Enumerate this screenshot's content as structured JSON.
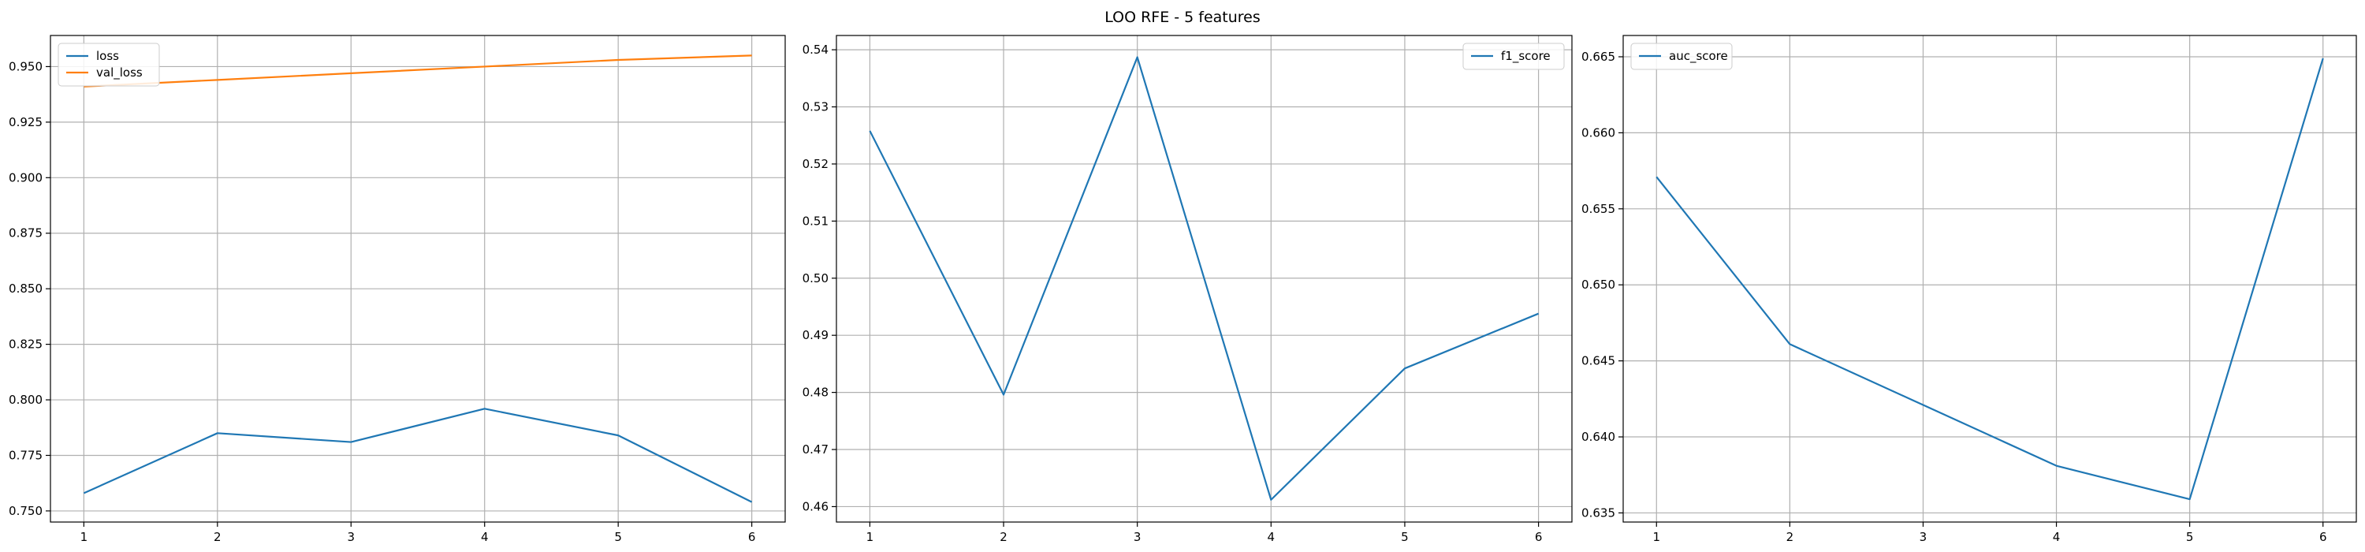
{
  "figure": {
    "title": "LOO RFE - 5 features"
  },
  "chart_data": [
    {
      "type": "line",
      "x": [
        1,
        2,
        3,
        4,
        5,
        6
      ],
      "series": [
        {
          "name": "loss",
          "color": "#1f77b4",
          "values": [
            0.758,
            0.785,
            0.781,
            0.796,
            0.784,
            0.754
          ]
        },
        {
          "name": "val_loss",
          "color": "#ff7f0e",
          "values": [
            0.941,
            0.944,
            0.947,
            0.95,
            0.953,
            0.955
          ]
        }
      ],
      "xticks": [
        1,
        2,
        3,
        4,
        5,
        6
      ],
      "yticks": [
        0.75,
        0.775,
        0.8,
        0.825,
        0.85,
        0.875,
        0.9,
        0.925,
        0.95
      ],
      "ytick_labels": [
        "0.750",
        "0.775",
        "0.800",
        "0.825",
        "0.850",
        "0.875",
        "0.900",
        "0.925",
        "0.950"
      ],
      "xlim": [
        0.75,
        6.25
      ],
      "ylim": [
        0.745,
        0.964
      ],
      "grid": true,
      "legend_position": "upper left"
    },
    {
      "type": "line",
      "x": [
        1,
        2,
        3,
        4,
        5,
        6
      ],
      "series": [
        {
          "name": "f1_score",
          "color": "#1f77b4",
          "values": [
            0.5258,
            0.4796,
            0.5387,
            0.4612,
            0.4842,
            0.4938
          ]
        }
      ],
      "xticks": [
        1,
        2,
        3,
        4,
        5,
        6
      ],
      "yticks": [
        0.46,
        0.47,
        0.48,
        0.49,
        0.5,
        0.51,
        0.52,
        0.53,
        0.54
      ],
      "ytick_labels": [
        "0.46",
        "0.47",
        "0.48",
        "0.49",
        "0.50",
        "0.51",
        "0.52",
        "0.53",
        "0.54"
      ],
      "xlim": [
        0.75,
        6.25
      ],
      "ylim": [
        0.4573,
        0.5425
      ],
      "grid": true,
      "legend_position": "upper right"
    },
    {
      "type": "line",
      "x": [
        1,
        2,
        3,
        4,
        5,
        6
      ],
      "series": [
        {
          "name": "auc_score",
          "color": "#1f77b4",
          "values": [
            0.6571,
            0.6461,
            0.6421,
            0.6381,
            0.6359,
            0.6649
          ]
        }
      ],
      "xticks": [
        1,
        2,
        3,
        4,
        5,
        6
      ],
      "yticks": [
        0.635,
        0.64,
        0.645,
        0.65,
        0.655,
        0.66,
        0.665
      ],
      "ytick_labels": [
        "0.635",
        "0.640",
        "0.645",
        "0.650",
        "0.655",
        "0.660",
        "0.665"
      ],
      "xlim": [
        0.75,
        6.25
      ],
      "ylim": [
        0.6344,
        0.6664
      ],
      "grid": true,
      "legend_position": "upper left"
    }
  ]
}
